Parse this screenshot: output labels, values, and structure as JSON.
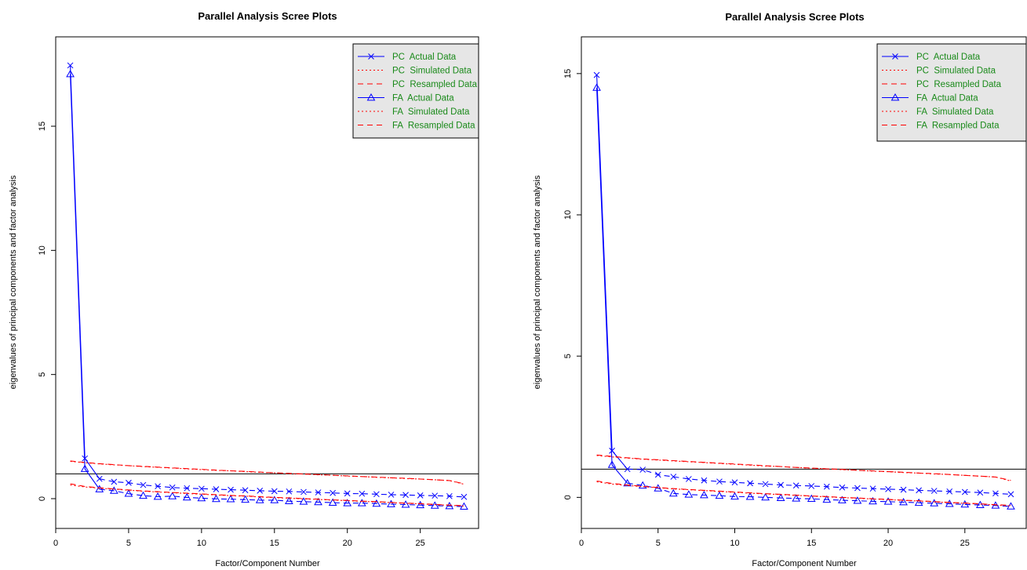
{
  "chart_data": [
    {
      "type": "line",
      "title": "Parallel Analysis Scree Plots",
      "xlabel": "Factor/Component Number",
      "ylabel": "eigenvalues of principal components and factor analysis",
      "xlim": [
        0,
        29
      ],
      "ylim": [
        -1.2,
        18.6
      ],
      "xticks": [
        0,
        5,
        10,
        15,
        20,
        25
      ],
      "yticks": [
        0,
        5,
        10,
        15
      ],
      "reference_line": 1,
      "legend_position": "top-right",
      "x": [
        1,
        2,
        3,
        4,
        5,
        6,
        7,
        8,
        9,
        10,
        11,
        12,
        13,
        14,
        15,
        16,
        17,
        18,
        19,
        20,
        21,
        22,
        23,
        24,
        25,
        26,
        27,
        28
      ],
      "series": [
        {
          "name": "PC  Actual Data",
          "color": "#0000ff",
          "style": "solid",
          "marker": "x",
          "values": [
            17.45,
            1.62,
            0.8,
            0.68,
            0.64,
            0.55,
            0.5,
            0.45,
            0.42,
            0.4,
            0.38,
            0.36,
            0.34,
            0.32,
            0.3,
            0.29,
            0.27,
            0.25,
            0.23,
            0.21,
            0.2,
            0.18,
            0.16,
            0.15,
            0.13,
            0.12,
            0.1,
            0.07
          ]
        },
        {
          "name": "PC  Simulated Data",
          "color": "#ff0000",
          "style": "dotted",
          "values": [
            1.5,
            1.45,
            1.4,
            1.36,
            1.33,
            1.29,
            1.26,
            1.23,
            1.2,
            1.17,
            1.14,
            1.12,
            1.09,
            1.06,
            1.04,
            1.01,
            0.99,
            0.96,
            0.94,
            0.91,
            0.89,
            0.86,
            0.84,
            0.81,
            0.79,
            0.76,
            0.73,
            0.58
          ]
        },
        {
          "name": "PC  Resampled Data",
          "color": "#ff0000",
          "style": "dashed",
          "values": [
            1.52,
            1.46,
            1.41,
            1.37,
            1.33,
            1.3,
            1.27,
            1.24,
            1.21,
            1.18,
            1.15,
            1.12,
            1.1,
            1.07,
            1.04,
            1.02,
            0.99,
            0.97,
            0.94,
            0.92,
            0.89,
            0.87,
            0.84,
            0.82,
            0.79,
            0.76,
            0.73,
            0.6
          ]
        },
        {
          "name": "FA  Actual Data",
          "color": "#0000ff",
          "style": "solid",
          "marker": "triangle",
          "values": [
            17.1,
            1.2,
            0.38,
            0.32,
            0.2,
            0.12,
            0.08,
            0.1,
            0.05,
            0.02,
            -0.01,
            -0.02,
            -0.04,
            -0.06,
            -0.06,
            -0.1,
            -0.12,
            -0.14,
            -0.16,
            -0.18,
            -0.18,
            -0.2,
            -0.22,
            -0.24,
            -0.26,
            -0.28,
            -0.3,
            -0.32
          ]
        },
        {
          "name": "FA  Simulated Data",
          "color": "#ff0000",
          "style": "dotted",
          "values": [
            0.55,
            0.47,
            0.42,
            0.38,
            0.34,
            0.3,
            0.27,
            0.24,
            0.21,
            0.18,
            0.15,
            0.12,
            0.1,
            0.07,
            0.04,
            0.02,
            -0.01,
            -0.03,
            -0.06,
            -0.08,
            -0.11,
            -0.13,
            -0.16,
            -0.19,
            -0.21,
            -0.24,
            -0.27,
            -0.3
          ]
        },
        {
          "name": "FA  Resampled Data",
          "color": "#ff0000",
          "style": "dashed",
          "values": [
            0.6,
            0.49,
            0.44,
            0.39,
            0.35,
            0.31,
            0.28,
            0.25,
            0.22,
            0.19,
            0.16,
            0.13,
            0.11,
            0.08,
            0.05,
            0.03,
            0.0,
            -0.02,
            -0.05,
            -0.07,
            -0.1,
            -0.12,
            -0.15,
            -0.18,
            -0.2,
            -0.23,
            -0.26,
            -0.28
          ]
        }
      ]
    },
    {
      "type": "line",
      "title": "Parallel Analysis Scree Plots",
      "xlabel": "Factor/Component Number",
      "ylabel": "eigenvalues of principal components and factor analysis",
      "xlim": [
        0,
        29
      ],
      "ylim": [
        -1.1,
        16.3
      ],
      "xticks": [
        0,
        5,
        10,
        15,
        20,
        25
      ],
      "yticks": [
        0,
        5,
        10,
        15
      ],
      "reference_line": 1,
      "legend_position": "top-right",
      "x": [
        1,
        2,
        3,
        4,
        5,
        6,
        7,
        8,
        9,
        10,
        11,
        12,
        13,
        14,
        15,
        16,
        17,
        18,
        19,
        20,
        21,
        22,
        23,
        24,
        25,
        26,
        27,
        28
      ],
      "series": [
        {
          "name": "PC  Actual Data",
          "color": "#0000ff",
          "style": "solid",
          "marker": "x",
          "values": [
            14.95,
            1.65,
            1.0,
            0.98,
            0.8,
            0.73,
            0.65,
            0.6,
            0.56,
            0.53,
            0.5,
            0.47,
            0.44,
            0.42,
            0.4,
            0.38,
            0.35,
            0.33,
            0.31,
            0.29,
            0.27,
            0.25,
            0.23,
            0.21,
            0.19,
            0.17,
            0.14,
            0.11
          ]
        },
        {
          "name": "PC  Simulated Data",
          "color": "#ff0000",
          "style": "dotted",
          "values": [
            1.48,
            1.43,
            1.39,
            1.35,
            1.32,
            1.29,
            1.26,
            1.23,
            1.2,
            1.17,
            1.14,
            1.11,
            1.09,
            1.06,
            1.03,
            1.01,
            0.98,
            0.96,
            0.93,
            0.91,
            0.88,
            0.86,
            0.83,
            0.81,
            0.78,
            0.75,
            0.72,
            0.58
          ]
        },
        {
          "name": "PC  Resampled Data",
          "color": "#ff0000",
          "style": "dashed",
          "values": [
            1.5,
            1.45,
            1.4,
            1.36,
            1.33,
            1.3,
            1.27,
            1.24,
            1.21,
            1.18,
            1.15,
            1.12,
            1.09,
            1.06,
            1.04,
            1.01,
            0.99,
            0.96,
            0.94,
            0.91,
            0.89,
            0.86,
            0.84,
            0.81,
            0.78,
            0.75,
            0.72,
            0.6
          ]
        },
        {
          "name": "FA  Actual Data",
          "color": "#0000ff",
          "style": "solid",
          "marker": "triangle",
          "values": [
            14.5,
            1.15,
            0.5,
            0.42,
            0.32,
            0.14,
            0.1,
            0.08,
            0.06,
            0.03,
            0.02,
            0.0,
            -0.02,
            -0.04,
            -0.05,
            -0.08,
            -0.1,
            -0.12,
            -0.14,
            -0.15,
            -0.17,
            -0.19,
            -0.21,
            -0.23,
            -0.25,
            -0.27,
            -0.29,
            -0.32
          ]
        },
        {
          "name": "FA  Simulated Data",
          "color": "#ff0000",
          "style": "dotted",
          "values": [
            0.55,
            0.47,
            0.42,
            0.38,
            0.34,
            0.3,
            0.27,
            0.24,
            0.21,
            0.18,
            0.15,
            0.12,
            0.1,
            0.07,
            0.04,
            0.02,
            -0.01,
            -0.03,
            -0.06,
            -0.08,
            -0.11,
            -0.13,
            -0.16,
            -0.19,
            -0.21,
            -0.24,
            -0.27,
            -0.3
          ]
        },
        {
          "name": "FA  Resampled Data",
          "color": "#ff0000",
          "style": "dashed",
          "values": [
            0.58,
            0.49,
            0.44,
            0.39,
            0.35,
            0.31,
            0.28,
            0.25,
            0.22,
            0.19,
            0.16,
            0.13,
            0.11,
            0.08,
            0.05,
            0.03,
            0.0,
            -0.02,
            -0.05,
            -0.07,
            -0.1,
            -0.12,
            -0.15,
            -0.18,
            -0.2,
            -0.23,
            -0.26,
            -0.28
          ]
        }
      ]
    }
  ]
}
